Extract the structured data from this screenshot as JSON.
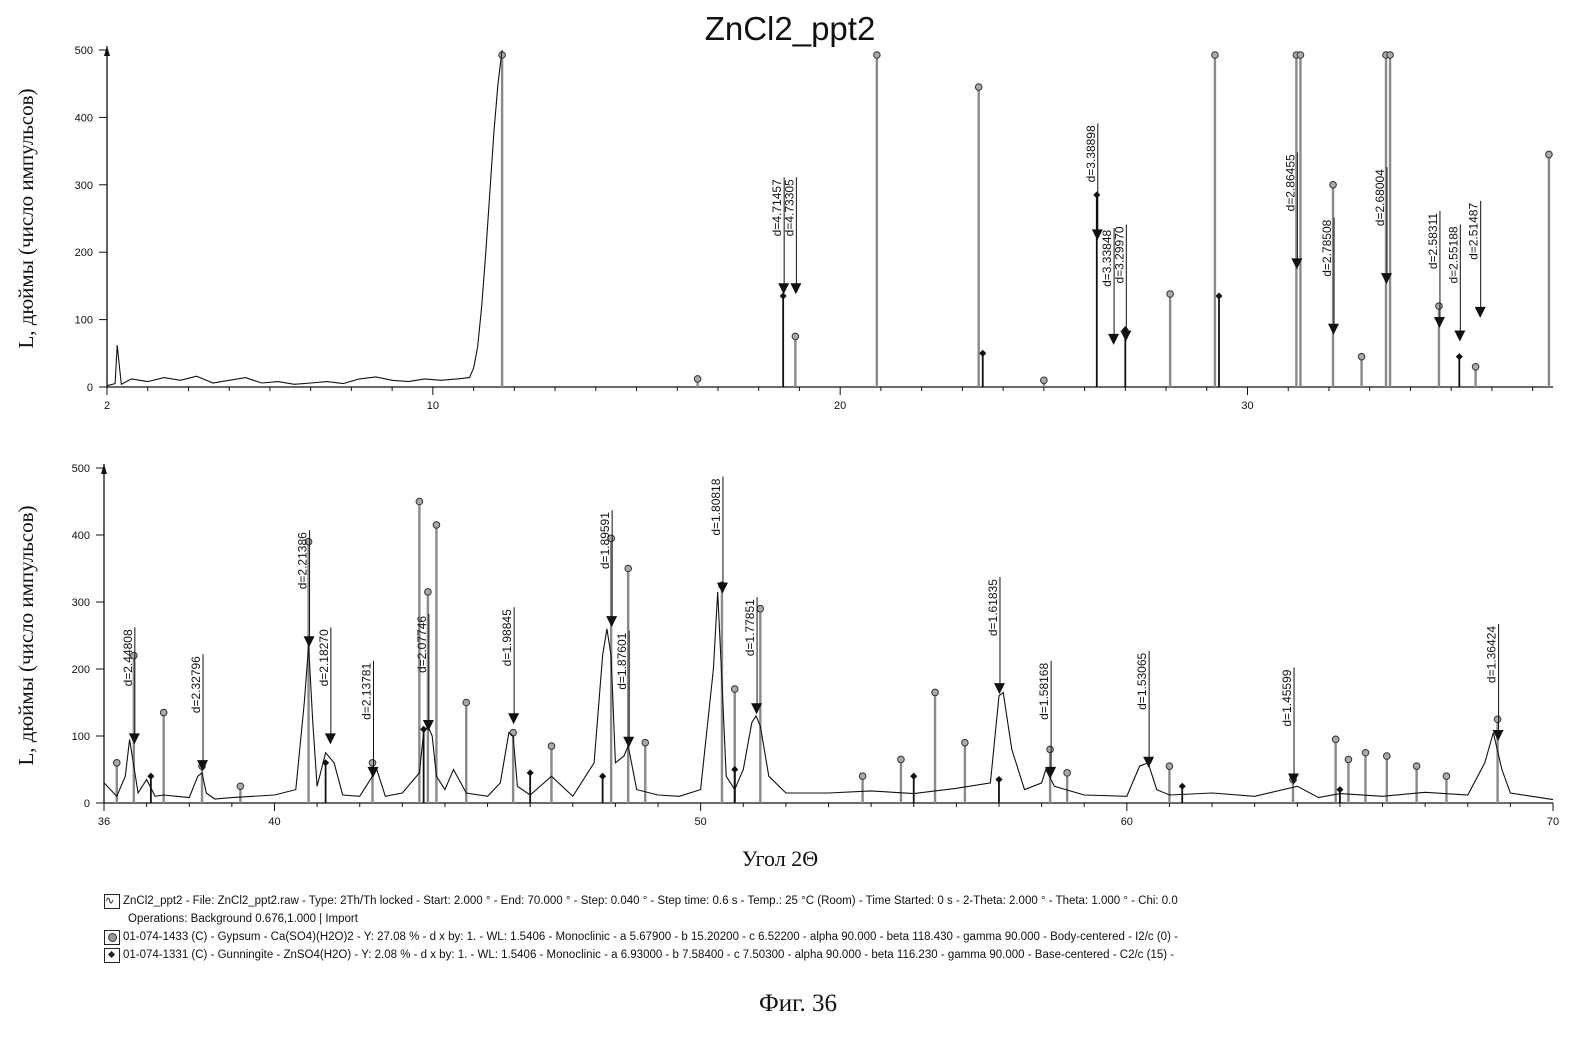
{
  "chart_data": [
    {
      "type": "line",
      "title": "ZnCl2_ppt2",
      "ylabel": "L, дюймы (число импульсов)",
      "xlabel": "",
      "xlim": [
        2,
        37.5
      ],
      "ylim": [
        0,
        500
      ],
      "x_ticks": [
        2,
        10,
        20,
        30
      ],
      "y_ticks": [
        0,
        100,
        200,
        300,
        400,
        500
      ],
      "series": [
        {
          "name": "ZnCl2_ppt2",
          "x": [
            2.0,
            2.2,
            2.25,
            2.35,
            2.6,
            3.0,
            3.4,
            3.8,
            4.2,
            4.6,
            5.0,
            5.4,
            5.8,
            6.2,
            6.6,
            7.0,
            7.4,
            7.8,
            8.2,
            8.6,
            9.0,
            9.4,
            9.8,
            10.2,
            10.6,
            10.9,
            11.0,
            11.1,
            11.2,
            11.3,
            11.4,
            11.5,
            11.6,
            11.7
          ],
          "y": [
            2,
            5,
            62,
            4,
            12,
            8,
            14,
            10,
            16,
            6,
            10,
            14,
            6,
            8,
            4,
            6,
            8,
            5,
            12,
            15,
            10,
            8,
            12,
            10,
            12,
            14,
            28,
            60,
            120,
            200,
            290,
            380,
            450,
            500
          ]
        }
      ],
      "annotations": [
        {
          "label": "d=4.71457",
          "x": 18.6,
          "y": 145
        },
        {
          "label": "d=4.73305",
          "x": 18.9,
          "y": 145
        },
        {
          "label": "d=3.38898",
          "x": 26.3,
          "y": 225
        },
        {
          "label": "d=3.33848",
          "x": 26.7,
          "y": 70
        },
        {
          "label": "d=3.29970",
          "x": 27.0,
          "y": 75
        },
        {
          "label": "d=2.86455",
          "x": 31.2,
          "y": 182
        },
        {
          "label": "d=2.78508",
          "x": 32.1,
          "y": 85
        },
        {
          "label": "d=2.68004",
          "x": 33.4,
          "y": 160
        },
        {
          "label": "d=2.58311",
          "x": 34.7,
          "y": 95
        },
        {
          "label": "d=2.55188",
          "x": 35.2,
          "y": 75
        },
        {
          "label": "d=2.51487",
          "x": 35.7,
          "y": 110
        }
      ],
      "gypsum_peaks": [
        {
          "x": 11.7,
          "y": 490,
          "truncated": true
        },
        {
          "x": 16.5,
          "y": 12
        },
        {
          "x": 18.9,
          "y": 75
        },
        {
          "x": 20.9,
          "y": 490,
          "truncated": true
        },
        {
          "x": 23.4,
          "y": 445
        },
        {
          "x": 25.0,
          "y": 10
        },
        {
          "x": 28.1,
          "y": 138
        },
        {
          "x": 29.2,
          "y": 490,
          "truncated": true
        },
        {
          "x": 31.2,
          "y": 490,
          "truncated": true
        },
        {
          "x": 31.3,
          "y": 490,
          "truncated": true
        },
        {
          "x": 32.1,
          "y": 300
        },
        {
          "x": 32.8,
          "y": 45
        },
        {
          "x": 33.4,
          "y": 490,
          "truncated": true
        },
        {
          "x": 33.5,
          "y": 490,
          "truncated": true
        },
        {
          "x": 34.7,
          "y": 120
        },
        {
          "x": 35.6,
          "y": 30
        },
        {
          "x": 37.4,
          "y": 345
        }
      ],
      "gunningite_peaks": [
        {
          "x": 18.6,
          "y": 135
        },
        {
          "x": 23.5,
          "y": 50
        },
        {
          "x": 26.3,
          "y": 285
        },
        {
          "x": 27.0,
          "y": 85
        },
        {
          "x": 29.3,
          "y": 135
        },
        {
          "x": 35.2,
          "y": 45
        }
      ]
    },
    {
      "type": "line",
      "title": "",
      "ylabel": "L, дюймы (число импульсов)",
      "xlabel": "Угол 2Θ",
      "xlim": [
        36,
        70
      ],
      "ylim": [
        0,
        500
      ],
      "x_ticks": [
        36,
        40,
        50,
        60,
        70
      ],
      "y_ticks": [
        0,
        100,
        200,
        300,
        400,
        500
      ],
      "series": [
        {
          "name": "ZnCl2_ppt2",
          "x": [
            36.0,
            36.3,
            36.5,
            36.6,
            36.7,
            36.8,
            37.0,
            37.2,
            37.4,
            38.0,
            38.2,
            38.3,
            38.4,
            38.6,
            39.0,
            39.5,
            40.0,
            40.5,
            40.7,
            40.8,
            40.9,
            41.0,
            41.2,
            41.4,
            41.6,
            42.0,
            42.3,
            42.4,
            42.6,
            43.0,
            43.4,
            43.5,
            43.6,
            43.7,
            43.8,
            44.0,
            44.2,
            44.5,
            45.0,
            45.3,
            45.5,
            45.6,
            45.7,
            46.0,
            46.5,
            47.0,
            47.5,
            47.7,
            47.8,
            47.9,
            48.0,
            48.2,
            48.3,
            48.5,
            49.0,
            49.5,
            50.0,
            50.3,
            50.4,
            50.5,
            50.6,
            50.8,
            51.0,
            51.2,
            51.3,
            51.4,
            51.6,
            52.0,
            53.0,
            54.0,
            55.0,
            56.0,
            56.8,
            57.0,
            57.1,
            57.3,
            57.6,
            58.0,
            58.1,
            58.3,
            59.0,
            60.0,
            60.3,
            60.5,
            60.7,
            61.0,
            62.0,
            63.0,
            64.0,
            64.5,
            65.0,
            66.0,
            67.0,
            68.0,
            68.4,
            68.6,
            68.8,
            69.0,
            69.5,
            70.0
          ],
          "y": [
            30,
            10,
            40,
            95,
            55,
            15,
            35,
            10,
            12,
            8,
            40,
            45,
            15,
            6,
            8,
            10,
            12,
            20,
            150,
            235,
            120,
            25,
            75,
            60,
            12,
            10,
            40,
            50,
            10,
            15,
            45,
            105,
            115,
            100,
            40,
            20,
            50,
            15,
            10,
            30,
            105,
            100,
            25,
            12,
            40,
            10,
            60,
            220,
            260,
            220,
            60,
            70,
            85,
            20,
            12,
            10,
            20,
            200,
            315,
            180,
            40,
            20,
            50,
            120,
            130,
            115,
            40,
            15,
            15,
            18,
            14,
            22,
            30,
            160,
            165,
            80,
            20,
            30,
            50,
            25,
            12,
            10,
            55,
            60,
            20,
            12,
            15,
            10,
            25,
            8,
            14,
            10,
            16,
            12,
            60,
            105,
            50,
            15,
            10,
            5
          ]
        }
      ],
      "annotations": [
        {
          "label": "d=2.44808",
          "x": 36.7,
          "y": 95
        },
        {
          "label": "d=2.32796",
          "x": 38.3,
          "y": 55
        },
        {
          "label": "d=2.21386",
          "x": 40.8,
          "y": 240
        },
        {
          "label": "d=2.18270",
          "x": 41.3,
          "y": 95
        },
        {
          "label": "d=2.13781",
          "x": 42.3,
          "y": 45
        },
        {
          "label": "d=2.07746",
          "x": 43.6,
          "y": 115
        },
        {
          "label": "d=1.98845",
          "x": 45.6,
          "y": 125
        },
        {
          "label": "d=1.89591",
          "x": 47.9,
          "y": 270
        },
        {
          "label": "d=1.87601",
          "x": 48.3,
          "y": 90
        },
        {
          "label": "d=1.80818",
          "x": 50.5,
          "y": 320
        },
        {
          "label": "d=1.77851",
          "x": 51.3,
          "y": 140
        },
        {
          "label": "d=1.61835",
          "x": 57.0,
          "y": 170
        },
        {
          "label": "d=1.58168",
          "x": 58.2,
          "y": 45
        },
        {
          "label": "d=1.53065",
          "x": 60.5,
          "y": 60
        },
        {
          "label": "d=1.45599",
          "x": 63.9,
          "y": 35
        },
        {
          "label": "d=1.36424",
          "x": 68.7,
          "y": 100
        }
      ],
      "gypsum_peaks": [
        {
          "x": 36.3,
          "y": 60
        },
        {
          "x": 36.7,
          "y": 220
        },
        {
          "x": 37.4,
          "y": 135
        },
        {
          "x": 38.3,
          "y": 55
        },
        {
          "x": 39.2,
          "y": 25
        },
        {
          "x": 40.8,
          "y": 390
        },
        {
          "x": 42.3,
          "y": 60
        },
        {
          "x": 43.4,
          "y": 450
        },
        {
          "x": 43.6,
          "y": 315
        },
        {
          "x": 43.8,
          "y": 415
        },
        {
          "x": 44.5,
          "y": 150
        },
        {
          "x": 45.6,
          "y": 105
        },
        {
          "x": 46.5,
          "y": 85
        },
        {
          "x": 47.9,
          "y": 395
        },
        {
          "x": 48.3,
          "y": 350
        },
        {
          "x": 48.7,
          "y": 90
        },
        {
          "x": 50.5,
          "y": 325
        },
        {
          "x": 50.8,
          "y": 170
        },
        {
          "x": 51.4,
          "y": 290
        },
        {
          "x": 53.8,
          "y": 40
        },
        {
          "x": 54.7,
          "y": 65
        },
        {
          "x": 55.5,
          "y": 165
        },
        {
          "x": 56.2,
          "y": 90
        },
        {
          "x": 58.2,
          "y": 80
        },
        {
          "x": 58.6,
          "y": 45
        },
        {
          "x": 61.0,
          "y": 55
        },
        {
          "x": 63.9,
          "y": 35
        },
        {
          "x": 64.9,
          "y": 95
        },
        {
          "x": 65.2,
          "y": 65
        },
        {
          "x": 65.6,
          "y": 75
        },
        {
          "x": 66.1,
          "y": 70
        },
        {
          "x": 66.8,
          "y": 55
        },
        {
          "x": 67.5,
          "y": 40
        },
        {
          "x": 68.7,
          "y": 125
        }
      ],
      "gunningite_peaks": [
        {
          "x": 37.1,
          "y": 40
        },
        {
          "x": 41.2,
          "y": 60
        },
        {
          "x": 43.5,
          "y": 110
        },
        {
          "x": 46.0,
          "y": 45
        },
        {
          "x": 47.7,
          "y": 40
        },
        {
          "x": 50.8,
          "y": 50
        },
        {
          "x": 55.0,
          "y": 40
        },
        {
          "x": 57.0,
          "y": 35
        },
        {
          "x": 61.3,
          "y": 25
        },
        {
          "x": 65.0,
          "y": 20
        }
      ]
    }
  ],
  "legend": {
    "pattern_line1": "ZnCl2_ppt2 - File: ZnCl2_ppt2.raw - Type: 2Th/Th locked - Start: 2.000 ° - End: 70.000 ° - Step: 0.040 ° - Step time: 0.6 s - Temp.: 25 °C (Room) - Time Started: 0 s - 2-Theta: 2.000 ° - Theta: 1.000 ° - Chi: 0.0",
    "pattern_line2": "Operations: Background 0.676,1.000 | Import",
    "gypsum": "01-074-1433 (C) - Gypsum - Ca(SO4)(H2O)2 - Y: 27.08 % - d x by: 1. - WL: 1.5406 - Monoclinic - a 5.67900 - b 15.20200 - c 6.52200 - alpha 90.000 - beta 118.430 - gamma 90.000 - Body-centered - I2/c (0) -",
    "gunningite": "01-074-1331 (C) - Gunningite - ZnSO4(H2O) - Y: 2.08 % - d x by: 1. - WL: 1.5406 - Monoclinic - a 6.93000 - b 7.58400 - c 7.50300 - alpha 90.000 - beta 116.230 - gamma 90.000 - Base-centered - C2/c (15) -"
  },
  "figure_caption": "Фиг. 36"
}
